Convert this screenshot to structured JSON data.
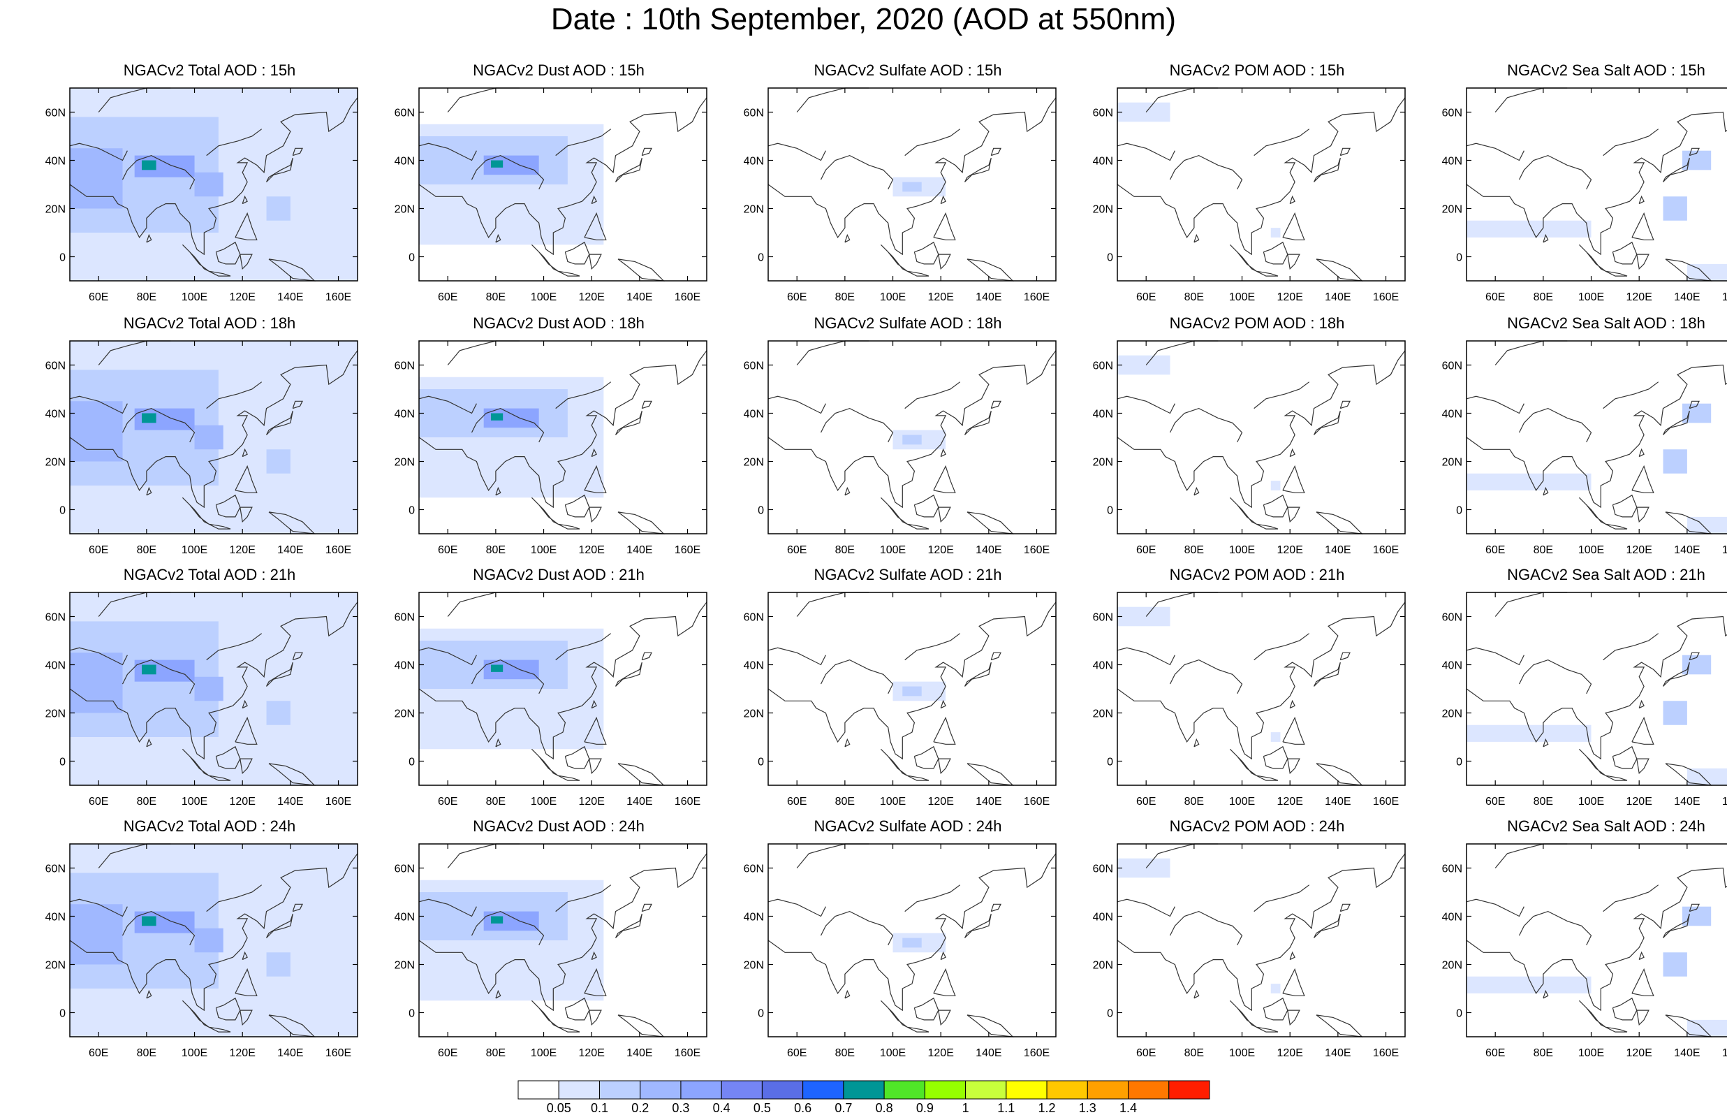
{
  "title": "Date : 10th September, 2020 (AOD at 550nm)",
  "map_extent": {
    "lon": [
      48,
      168
    ],
    "lat": [
      -10,
      70
    ]
  },
  "lat_ticks": [
    {
      "value": 60,
      "label": "60N"
    },
    {
      "value": 40,
      "label": "40N"
    },
    {
      "value": 20,
      "label": "20N"
    },
    {
      "value": 0,
      "label": "0"
    }
  ],
  "lon_ticks": [
    {
      "value": 60,
      "label": "60E"
    },
    {
      "value": 80,
      "label": "80E"
    },
    {
      "value": 100,
      "label": "100E"
    },
    {
      "value": 120,
      "label": "120E"
    },
    {
      "value": 140,
      "label": "140E"
    },
    {
      "value": 160,
      "label": "160E"
    }
  ],
  "coast_color": "#333333",
  "panels": [
    {
      "title": "NGACv2 Total AOD : 15h",
      "species": "total"
    },
    {
      "title": "NGACv2 Dust AOD : 15h",
      "species": "dust"
    },
    {
      "title": "NGACv2 Sulfate AOD : 15h",
      "species": "sulfate"
    },
    {
      "title": "NGACv2 POM AOD : 15h",
      "species": "pom"
    },
    {
      "title": "NGACv2 Sea Salt AOD : 15h",
      "species": "seasalt"
    },
    {
      "title": "NGACv2 Total AOD : 18h",
      "species": "total"
    },
    {
      "title": "NGACv2 Dust AOD : 18h",
      "species": "dust"
    },
    {
      "title": "NGACv2 Sulfate AOD : 18h",
      "species": "sulfate"
    },
    {
      "title": "NGACv2 POM AOD : 18h",
      "species": "pom"
    },
    {
      "title": "NGACv2 Sea Salt AOD : 18h",
      "species": "seasalt"
    },
    {
      "title": "NGACv2 Total AOD : 21h",
      "species": "total"
    },
    {
      "title": "NGACv2 Dust AOD : 21h",
      "species": "dust"
    },
    {
      "title": "NGACv2 Sulfate AOD : 21h",
      "species": "sulfate"
    },
    {
      "title": "NGACv2 POM AOD : 21h",
      "species": "pom"
    },
    {
      "title": "NGACv2 Sea Salt AOD : 21h",
      "species": "seasalt"
    },
    {
      "title": "NGACv2 Total AOD : 24h",
      "species": "total"
    },
    {
      "title": "NGACv2 Dust AOD : 24h",
      "species": "dust"
    },
    {
      "title": "NGACv2 Sulfate AOD : 24h",
      "species": "sulfate"
    },
    {
      "title": "NGACv2 POM AOD : 24h",
      "species": "pom"
    },
    {
      "title": "NGACv2 Sea Salt  AOD : 24h",
      "species": "seasalt"
    }
  ],
  "colorbar": {
    "colors": [
      "#ffffff",
      "#dce6ff",
      "#bcd0ff",
      "#a0b8ff",
      "#8ca5ff",
      "#7585f5",
      "#5a6ee6",
      "#1e64ff",
      "#009696",
      "#50e628",
      "#96ff00",
      "#c8ff3c",
      "#ffff00",
      "#ffc800",
      "#ffa000",
      "#ff7800",
      "#ff1e00"
    ],
    "labels": [
      "0.05",
      "0.1",
      "0.2",
      "0.3",
      "0.4",
      "0.5",
      "0.6",
      "0.7",
      "0.8",
      "0.9",
      "1",
      "1.1",
      "1.2",
      "1.3",
      "1.4"
    ]
  },
  "plumes": {
    "total": [
      {
        "lon": [
          48,
          168
        ],
        "lat": [
          -10,
          70
        ],
        "level": 1
      },
      {
        "lon": [
          48,
          110
        ],
        "lat": [
          10,
          58
        ],
        "level": 2
      },
      {
        "lon": [
          48,
          70
        ],
        "lat": [
          20,
          45
        ],
        "level": 3
      },
      {
        "lon": [
          75,
          100
        ],
        "lat": [
          33,
          42
        ],
        "level": 4
      },
      {
        "lon": [
          78,
          84
        ],
        "lat": [
          36,
          40
        ],
        "level": 8
      },
      {
        "lon": [
          100,
          112
        ],
        "lat": [
          25,
          35
        ],
        "level": 3
      },
      {
        "lon": [
          130,
          140
        ],
        "lat": [
          15,
          25
        ],
        "level": 2
      }
    ],
    "dust": [
      {
        "lon": [
          48,
          125
        ],
        "lat": [
          5,
          55
        ],
        "level": 1
      },
      {
        "lon": [
          48,
          110
        ],
        "lat": [
          30,
          50
        ],
        "level": 2
      },
      {
        "lon": [
          75,
          98
        ],
        "lat": [
          34,
          42
        ],
        "level": 4
      },
      {
        "lon": [
          78,
          83
        ],
        "lat": [
          37,
          40
        ],
        "level": 8
      }
    ],
    "sulfate": [
      {
        "lon": [
          100,
          122
        ],
        "lat": [
          25,
          33
        ],
        "level": 1
      },
      {
        "lon": [
          104,
          112
        ],
        "lat": [
          27,
          31
        ],
        "level": 2
      }
    ],
    "pom": [
      {
        "lon": [
          48,
          70
        ],
        "lat": [
          56,
          64
        ],
        "level": 1
      },
      {
        "lon": [
          112,
          116
        ],
        "lat": [
          8,
          12
        ],
        "level": 1
      }
    ],
    "seasalt": [
      {
        "lon": [
          48,
          100
        ],
        "lat": [
          8,
          15
        ],
        "level": 1
      },
      {
        "lon": [
          130,
          140
        ],
        "lat": [
          15,
          25
        ],
        "level": 2
      },
      {
        "lon": [
          138,
          150
        ],
        "lat": [
          36,
          44
        ],
        "level": 2
      },
      {
        "lon": [
          140,
          168
        ],
        "lat": [
          -10,
          -3
        ],
        "level": 1
      }
    ]
  }
}
